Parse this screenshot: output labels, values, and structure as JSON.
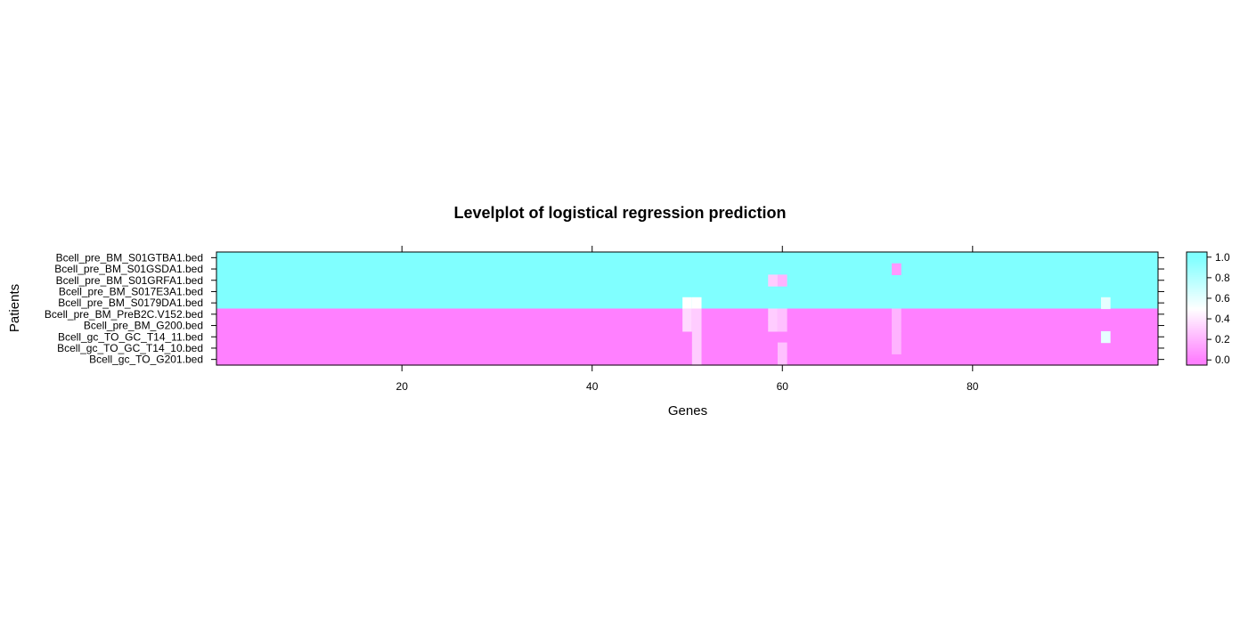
{
  "chart_data": {
    "type": "heatmap",
    "title": "Levelplot of logistical regression prediction",
    "xlabel": "Genes",
    "ylabel": "Patients",
    "x_range": [
      1,
      99
    ],
    "x_ticks": [
      20,
      40,
      60,
      80
    ],
    "rows": [
      "Bcell_pre_BM_S01GTBA1.bed",
      "Bcell_pre_BM_S01GSDA1.bed",
      "Bcell_pre_BM_S01GRFA1.bed",
      "Bcell_pre_BM_S017E3A1.bed",
      "Bcell_pre_BM_S0179DA1.bed",
      "Bcell_pre_BM_PreB2C.V152.bed",
      "Bcell_pre_BM_G200.bed",
      "Bcell_gc_TO_GC_T14_11.bed",
      "Bcell_gc_TO_GC_T14_10.bed",
      "Bcell_gc_TO_G201.bed"
    ],
    "row_default_values": [
      1,
      1,
      1,
      1,
      1,
      0,
      0,
      0,
      0,
      0
    ],
    "exceptions": [
      {
        "row": 1,
        "gene": 72,
        "value": 0.1
      },
      {
        "row": 2,
        "gene": 59,
        "value": 0.3
      },
      {
        "row": 2,
        "gene": 60,
        "value": 0.2
      },
      {
        "row": 4,
        "gene": 50,
        "value": 0.5
      },
      {
        "row": 4,
        "gene": 51,
        "value": 0.5
      },
      {
        "row": 4,
        "gene": 94,
        "value": 0.6
      },
      {
        "row": 5,
        "gene": 50,
        "value": 0.35
      },
      {
        "row": 5,
        "gene": 51,
        "value": 0.3
      },
      {
        "row": 5,
        "gene": 59,
        "value": 0.3
      },
      {
        "row": 5,
        "gene": 60,
        "value": 0.25
      },
      {
        "row": 5,
        "gene": 72,
        "value": 0.2
      },
      {
        "row": 6,
        "gene": 50,
        "value": 0.35
      },
      {
        "row": 6,
        "gene": 51,
        "value": 0.3
      },
      {
        "row": 6,
        "gene": 59,
        "value": 0.3
      },
      {
        "row": 6,
        "gene": 60,
        "value": 0.25
      },
      {
        "row": 6,
        "gene": 72,
        "value": 0.2
      },
      {
        "row": 7,
        "gene": 51,
        "value": 0.3
      },
      {
        "row": 7,
        "gene": 72,
        "value": 0.2
      },
      {
        "row": 7,
        "gene": 94,
        "value": 0.6
      },
      {
        "row": 8,
        "gene": 51,
        "value": 0.3
      },
      {
        "row": 8,
        "gene": 60,
        "value": 0.25
      },
      {
        "row": 8,
        "gene": 72,
        "value": 0.2
      },
      {
        "row": 9,
        "gene": 51,
        "value": 0.3
      },
      {
        "row": 9,
        "gene": 60,
        "value": 0.25
      }
    ],
    "colorkey": {
      "range": [
        -0.05,
        1.05
      ],
      "ticks": [
        0.0,
        0.2,
        0.4,
        0.6,
        0.8,
        1.0
      ],
      "tick_labels": [
        "0.0",
        "0.2",
        "0.4",
        "0.6",
        "0.8",
        "1.0"
      ],
      "low_color": "#ff80ff",
      "mid_color": "#ffffff",
      "high_color": "#80ffff"
    },
    "grid": false,
    "legend_position": "right"
  }
}
